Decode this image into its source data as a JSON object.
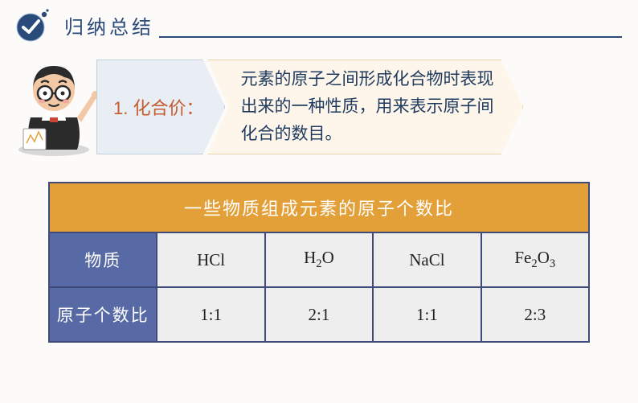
{
  "header": {
    "title": "归纳总结"
  },
  "arrow": {
    "label": "1. 化合价：",
    "desc_l1": "元素的原子之间形成化合物时表现",
    "desc_l2": "出来的一种性质，用来表示原子间",
    "desc_l3": "化合的数目。"
  },
  "table": {
    "title": "一些物质组成元素的原子个数比",
    "row1_label": "物质",
    "row2_label": "原子个数比",
    "colors": {
      "title_bg": "#e3a038",
      "rowhdr_bg": "#576aa5",
      "cell_bg": "#eeeeee",
      "border": "#3f4a7a"
    },
    "compounds": [
      {
        "formula_html": "HCl",
        "ratio": "1:1"
      },
      {
        "formula_html": "H<sub>2</sub>O",
        "ratio": "2:1"
      },
      {
        "formula_html": "NaCl",
        "ratio": "1:1"
      },
      {
        "formula_html": "Fe<sub>2</sub>O<sub>3</sub>",
        "ratio": "2:3"
      }
    ]
  },
  "colors": {
    "page_bg": "#fcfbf9",
    "header_text": "#2a4a7a",
    "arrow1_bg": "#e8eef3",
    "arrow1_text": "#c65a2f",
    "arrow2_bg": "#fef6ea",
    "arrow2_text": "#1f3a5f"
  }
}
